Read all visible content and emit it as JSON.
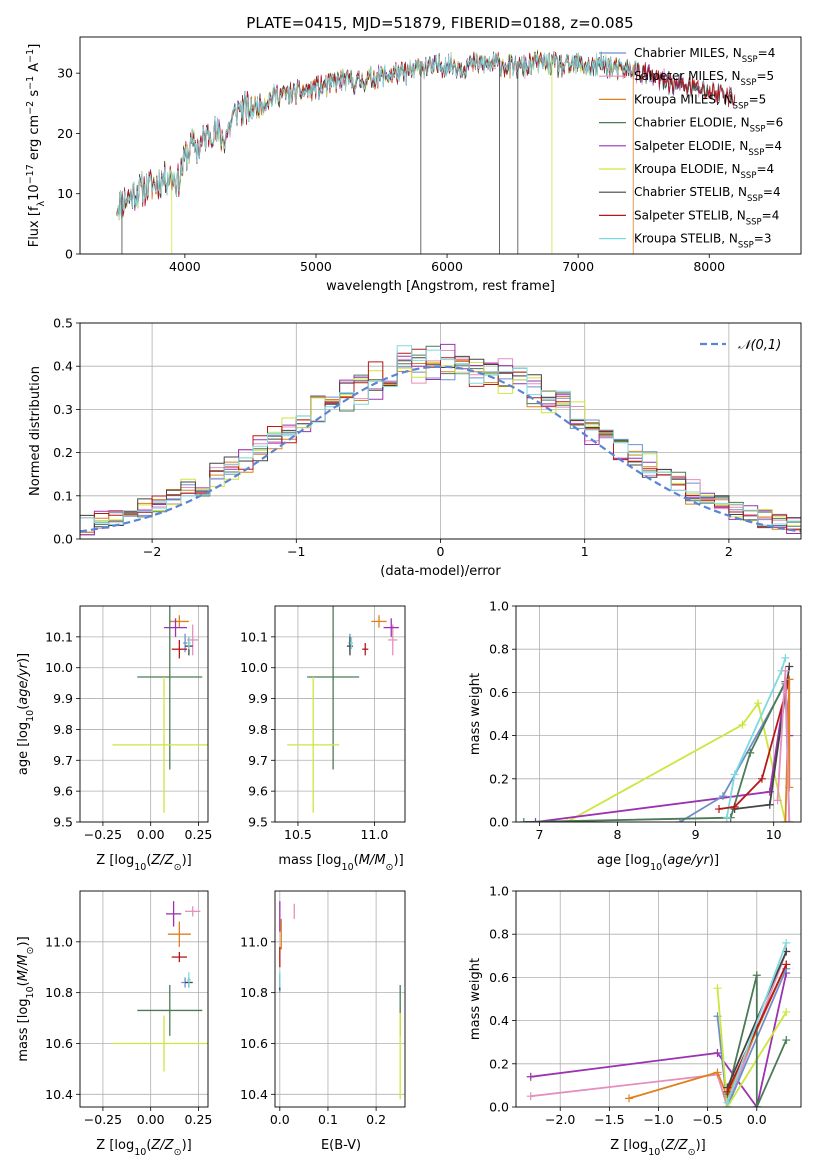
{
  "page": {
    "title": "PLATE=0415, MJD=51879, FIBERID=0188, z=0.085"
  },
  "models": [
    {
      "name": "Chabrier MILES",
      "nssp": "4",
      "color": "#6f8fcc"
    },
    {
      "name": "Salpeter MILES",
      "nssp": "5",
      "color": "#e58fbe"
    },
    {
      "name": "Kroupa MILES",
      "nssp": "5",
      "color": "#e07f1f"
    },
    {
      "name": "Chabrier ELODIE",
      "nssp": "6",
      "color": "#4c7a56"
    },
    {
      "name": "Salpeter ELODIE",
      "nssp": "4",
      "color": "#9b33b0"
    },
    {
      "name": "Kroupa ELODIE",
      "nssp": "4",
      "color": "#cde63f"
    },
    {
      "name": "Chabrier STELIB",
      "nssp": "4",
      "color": "#444444"
    },
    {
      "name": "Salpeter STELIB",
      "nssp": "4",
      "color": "#b71818"
    },
    {
      "name": "Kroupa STELIB",
      "nssp": "3",
      "color": "#7fd9e0"
    }
  ],
  "chart_data": [
    {
      "id": "spectrum",
      "type": "line",
      "title": "PLATE=0415, MJD=51879, FIBERID=0188, z=0.085",
      "xlabel": "wavelength [Angstrom, rest frame]",
      "ylabel": "Flux [f_λ 10^-17 erg cm^-2 s^-1 A^-1]",
      "xlim": [
        3200,
        8700
      ],
      "ylim": [
        0,
        36
      ],
      "xticks": [
        4000,
        5000,
        6000,
        7000,
        8000
      ],
      "yticks": [
        0,
        10,
        20,
        30
      ],
      "legend": "upper right",
      "continuum": {
        "x": [
          3480,
          3600,
          3700,
          3800,
          3880,
          3950,
          4000,
          4050,
          4100,
          4200,
          4300,
          4400,
          4500,
          4600,
          4700,
          4800,
          4900,
          5000,
          5100,
          5200,
          5300,
          5400,
          5500,
          5600,
          5700,
          5800,
          5900,
          6000,
          6100,
          6200,
          6300,
          6400,
          6500,
          6600,
          6700,
          6800,
          6900,
          7000,
          7100,
          7200,
          7300,
          7400,
          7500,
          7600,
          7700,
          7800,
          7900,
          8000,
          8100,
          8200
        ],
        "y": [
          8,
          10,
          11,
          12,
          13,
          12,
          16,
          18,
          17.5,
          20.5,
          19,
          24,
          24,
          25,
          26.5,
          26.5,
          27,
          27.5,
          28,
          29,
          28.5,
          29,
          29.5,
          30,
          30,
          31,
          31,
          31.5,
          31,
          31.5,
          31.5,
          31.5,
          31,
          31,
          32,
          31.5,
          31,
          31.5,
          31,
          31.5,
          30.5,
          30.5,
          30,
          29,
          28.5,
          28,
          27.5,
          27,
          26.5,
          26
        ]
      },
      "model_end": [
        8200,
        8200,
        7450,
        8000,
        7850,
        7400,
        8200,
        8200,
        7450
      ],
      "spikes": [
        {
          "x": 3520,
          "model": "Chabrier STELIB"
        },
        {
          "x": 3900,
          "model": "Kroupa ELODIE"
        },
        {
          "x": 5800,
          "model": "Chabrier STELIB"
        },
        {
          "x": 6400,
          "model": "Chabrier STELIB"
        },
        {
          "x": 6540,
          "model": "Chabrier STELIB"
        },
        {
          "x": 6800,
          "model": "Kroupa ELODIE"
        },
        {
          "x": 7420,
          "model": "Kroupa MILES"
        }
      ]
    },
    {
      "id": "residuals",
      "type": "histogram",
      "xlabel": "(data-model)/error",
      "ylabel": "Normed distribution",
      "xlim": [
        -2.5,
        2.5
      ],
      "ylim": [
        0,
        0.5
      ],
      "xticks": [
        -2,
        -1,
        0,
        1,
        2
      ],
      "yticks": [
        0.0,
        0.1,
        0.2,
        0.3,
        0.4,
        0.5
      ],
      "bin_width": 0.1,
      "legend_label": "𝒩(0,1)",
      "legend": "upper right",
      "gaussian_color": "#5b84d6"
    },
    {
      "id": "age_vs_Z",
      "type": "scatter",
      "xlabel": "Z [log10(Z/Z⊙)]",
      "ylabel": "age [log10(age/yr)]",
      "xlim": [
        -0.37,
        0.3
      ],
      "ylim": [
        9.5,
        10.2
      ],
      "xticks": [
        -0.25,
        0.0,
        0.25
      ],
      "yticks": [
        9.5,
        9.6,
        9.7,
        9.8,
        9.9,
        10.0,
        10.1
      ],
      "points": [
        {
          "model": "Chabrier MILES",
          "x": 0.18,
          "y": 10.08,
          "xerr": 0.01,
          "yerr": 0.03
        },
        {
          "model": "Salpeter MILES",
          "x": 0.22,
          "y": 10.09,
          "xerr": 0.03,
          "yerr": 0.05
        },
        {
          "model": "Kroupa MILES",
          "x": 0.15,
          "y": 10.15,
          "xerr": 0.05,
          "yerr": 0.02
        },
        {
          "model": "Chabrier ELODIE",
          "x": 0.1,
          "y": 9.97,
          "xerr": 0.17,
          "yerr": 0.3
        },
        {
          "model": "Salpeter ELODIE",
          "x": 0.13,
          "y": 10.13,
          "xerr": 0.06,
          "yerr": 0.03
        },
        {
          "model": "Kroupa ELODIE",
          "x": 0.07,
          "y": 9.75,
          "xerr": 0.27,
          "yerr": 0.22
        },
        {
          "model": "Chabrier STELIB",
          "x": 0.2,
          "y": 10.07,
          "xerr": 0.02,
          "yerr": 0.03
        },
        {
          "model": "Salpeter STELIB",
          "x": 0.15,
          "y": 10.06,
          "xerr": 0.04,
          "yerr": 0.03
        },
        {
          "model": "Kroupa STELIB",
          "x": 0.2,
          "y": 10.08,
          "xerr": 0.01,
          "yerr": 0.02
        }
      ]
    },
    {
      "id": "age_vs_mass",
      "type": "scatter",
      "xlabel": "mass [log10(M/M⊙)]",
      "ylabel": "",
      "xlim": [
        10.35,
        11.2
      ],
      "ylim": [
        9.5,
        10.2
      ],
      "xticks": [
        10.5,
        11.0
      ],
      "yticks": [
        9.5,
        9.6,
        9.7,
        9.8,
        9.9,
        10.0,
        10.1
      ],
      "points": [
        {
          "model": "Chabrier MILES",
          "x": 10.84,
          "y": 10.08,
          "xerr": 0.01,
          "yerr": 0.03
        },
        {
          "model": "Salpeter MILES",
          "x": 11.12,
          "y": 10.09,
          "xerr": 0.03,
          "yerr": 0.05
        },
        {
          "model": "Kroupa MILES",
          "x": 11.03,
          "y": 10.15,
          "xerr": 0.05,
          "yerr": 0.02
        },
        {
          "model": "Chabrier ELODIE",
          "x": 10.73,
          "y": 9.97,
          "xerr": 0.17,
          "yerr": 0.3
        },
        {
          "model": "Salpeter ELODIE",
          "x": 11.11,
          "y": 10.13,
          "xerr": 0.05,
          "yerr": 0.03
        },
        {
          "model": "Kroupa ELODIE",
          "x": 10.6,
          "y": 9.75,
          "xerr": 0.17,
          "yerr": 0.22
        },
        {
          "model": "Chabrier STELIB",
          "x": 10.84,
          "y": 10.07,
          "xerr": 0.02,
          "yerr": 0.03
        },
        {
          "model": "Salpeter STELIB",
          "x": 10.94,
          "y": 10.06,
          "xerr": 0.02,
          "yerr": 0.02
        },
        {
          "model": "Kroupa STELIB",
          "x": 10.85,
          "y": 10.08,
          "xerr": 0.01,
          "yerr": 0.02
        }
      ]
    },
    {
      "id": "weight_vs_age",
      "type": "line",
      "xlabel": "age [log10(age/yr)]",
      "ylabel": "mass weight",
      "xlim": [
        6.7,
        10.35
      ],
      "ylim": [
        0,
        1
      ],
      "xticks": [
        7,
        8,
        9,
        10
      ],
      "yticks": [
        0.0,
        0.2,
        0.4,
        0.6,
        0.8,
        1.0
      ],
      "series": [
        {
          "model": "Kroupa ELODIE",
          "x": [
            7.35,
            9.6,
            9.8,
            10.15
          ],
          "y": [
            0.0,
            0.45,
            0.55,
            0.0
          ]
        },
        {
          "model": "Salpeter ELODIE",
          "x": [
            6.95,
            9.95,
            10.15,
            10.2
          ],
          "y": [
            0.0,
            0.14,
            0.62,
            0.4
          ]
        },
        {
          "model": "Chabrier MILES",
          "x": [
            8.8,
            9.35,
            10.15,
            10.2
          ],
          "y": [
            0.0,
            0.12,
            0.64,
            0.0
          ]
        },
        {
          "model": "Chabrier ELODIE",
          "x": [
            6.8,
            9.45,
            9.7,
            10.15
          ],
          "y": [
            0.0,
            0.02,
            0.32,
            0.65
          ]
        },
        {
          "model": "Kroupa STELIB",
          "x": [
            9.4,
            9.5,
            10.1,
            10.15
          ],
          "y": [
            0.02,
            0.22,
            0.7,
            0.76
          ]
        },
        {
          "model": "Chabrier STELIB",
          "x": [
            9.5,
            9.95,
            10.2
          ],
          "y": [
            0.06,
            0.08,
            0.72
          ]
        },
        {
          "model": "Salpeter STELIB",
          "x": [
            9.3,
            9.5,
            9.85,
            10.2
          ],
          "y": [
            0.06,
            0.07,
            0.2,
            0.66
          ]
        },
        {
          "model": "Kroupa MILES",
          "x": [
            10.15,
            10.2,
            10.2
          ],
          "y": [
            0.0,
            0.66,
            0.16
          ]
        },
        {
          "model": "Salpeter MILES",
          "x": [
            10.05,
            10.15,
            10.2
          ],
          "y": [
            0.1,
            0.7,
            0.0
          ]
        }
      ]
    },
    {
      "id": "mass_vs_Z",
      "type": "scatter",
      "xlabel": "Z [log10(Z/Z⊙)]",
      "ylabel": "mass [log10(M/M⊙)]",
      "xlim": [
        -0.37,
        0.3
      ],
      "ylim": [
        10.35,
        11.2
      ],
      "xticks": [
        -0.25,
        0.0,
        0.25
      ],
      "yticks": [
        10.4,
        10.6,
        10.8,
        11.0
      ],
      "points": [
        {
          "model": "Chabrier MILES",
          "x": 0.18,
          "y": 10.84,
          "xerr": 0.02,
          "yerr": 0.02
        },
        {
          "model": "Salpeter MILES",
          "x": 0.22,
          "y": 11.12,
          "xerr": 0.04,
          "yerr": 0.02
        },
        {
          "model": "Kroupa MILES",
          "x": 0.15,
          "y": 11.03,
          "xerr": 0.06,
          "yerr": 0.05
        },
        {
          "model": "Chabrier ELODIE",
          "x": 0.1,
          "y": 10.73,
          "xerr": 0.17,
          "yerr": 0.1
        },
        {
          "model": "Salpeter ELODIE",
          "x": 0.12,
          "y": 11.11,
          "xerr": 0.04,
          "yerr": 0.05
        },
        {
          "model": "Kroupa ELODIE",
          "x": 0.07,
          "y": 10.6,
          "xerr": 0.27,
          "yerr": 0.11
        },
        {
          "model": "Chabrier STELIB",
          "x": 0.2,
          "y": 10.84,
          "xerr": 0.02,
          "yerr": 0.02
        },
        {
          "model": "Salpeter STELIB",
          "x": 0.15,
          "y": 10.94,
          "xerr": 0.04,
          "yerr": 0.02
        },
        {
          "model": "Kroupa STELIB",
          "x": 0.2,
          "y": 10.85,
          "xerr": 0.01,
          "yerr": 0.03
        }
      ]
    },
    {
      "id": "mass_vs_ebv",
      "type": "scatter",
      "xlabel": "E(B-V)",
      "ylabel": "",
      "xlim": [
        -0.01,
        0.26
      ],
      "ylim": [
        10.35,
        11.2
      ],
      "xticks": [
        0.0,
        0.1,
        0.2
      ],
      "yticks": [
        10.4,
        10.6,
        10.8,
        11.0
      ],
      "points": [
        {
          "model": "Chabrier MILES",
          "x": 0.0,
          "y": 10.84,
          "xerr": 0.0,
          "yerr": 0.04
        },
        {
          "model": "Salpeter MILES",
          "x": 0.03,
          "y": 11.12,
          "xerr": 0.0,
          "yerr": 0.03
        },
        {
          "model": "Kroupa MILES",
          "x": 0.003,
          "y": 11.03,
          "xerr": 0.0,
          "yerr": 0.06
        },
        {
          "model": "Chabrier ELODIE",
          "x": 0.25,
          "y": 10.73,
          "xerr": 0.0,
          "yerr": 0.1
        },
        {
          "model": "Salpeter ELODIE",
          "x": 0.0,
          "y": 11.1,
          "xerr": 0.0,
          "yerr": 0.06
        },
        {
          "model": "Kroupa ELODIE",
          "x": 0.25,
          "y": 10.55,
          "xerr": 0.0,
          "yerr": 0.17
        },
        {
          "model": "Chabrier STELIB",
          "x": 0.0,
          "y": 10.84,
          "xerr": 0.0,
          "yerr": 0.03
        },
        {
          "model": "Salpeter STELIB",
          "x": 0.0,
          "y": 10.94,
          "xerr": 0.0,
          "yerr": 0.04
        },
        {
          "model": "Kroupa STELIB",
          "x": 0.0,
          "y": 10.85,
          "xerr": 0.0,
          "yerr": 0.03
        }
      ]
    },
    {
      "id": "weight_vs_Z",
      "type": "line",
      "xlabel": "Z [log10(Z/Z⊙)]",
      "ylabel": "mass weight",
      "xlim": [
        -2.45,
        0.45
      ],
      "ylim": [
        0,
        1
      ],
      "xticks": [
        -2.0,
        -1.5,
        -1.0,
        -0.5,
        0.0
      ],
      "yticks": [
        0.0,
        0.2,
        0.4,
        0.6,
        0.8,
        1.0
      ],
      "series": [
        {
          "model": "Salpeter ELODIE",
          "x": [
            -2.3,
            -0.4,
            0.0,
            0.3
          ],
          "y": [
            0.14,
            0.25,
            0.0,
            0.62
          ]
        },
        {
          "model": "Salpeter MILES",
          "x": [
            -2.3,
            -0.4,
            -0.3,
            0.3
          ],
          "y": [
            0.05,
            0.15,
            0.0,
            0.72
          ]
        },
        {
          "model": "Kroupa MILES",
          "x": [
            -1.3,
            -0.4,
            -0.3,
            0.3
          ],
          "y": [
            0.04,
            0.16,
            0.05,
            0.66
          ]
        },
        {
          "model": "Chabrier MILES",
          "x": [
            -0.4,
            -0.3,
            0.3
          ],
          "y": [
            0.42,
            0.0,
            0.64
          ]
        },
        {
          "model": "Kroupa ELODIE",
          "x": [
            -0.4,
            -0.3,
            0.3
          ],
          "y": [
            0.55,
            0.0,
            0.44
          ]
        },
        {
          "model": "Chabrier ELODIE",
          "x": [
            -0.3,
            0.0,
            0.0,
            0.3
          ],
          "y": [
            0.06,
            0.61,
            0.0,
            0.31
          ]
        },
        {
          "model": "Chabrier STELIB",
          "x": [
            -0.3,
            0.3
          ],
          "y": [
            0.09,
            0.72
          ]
        },
        {
          "model": "Salpeter STELIB",
          "x": [
            -0.3,
            0.3
          ],
          "y": [
            0.07,
            0.66
          ]
        },
        {
          "model": "Kroupa STELIB",
          "x": [
            -0.3,
            0.3
          ],
          "y": [
            0.02,
            0.76
          ]
        }
      ]
    }
  ]
}
